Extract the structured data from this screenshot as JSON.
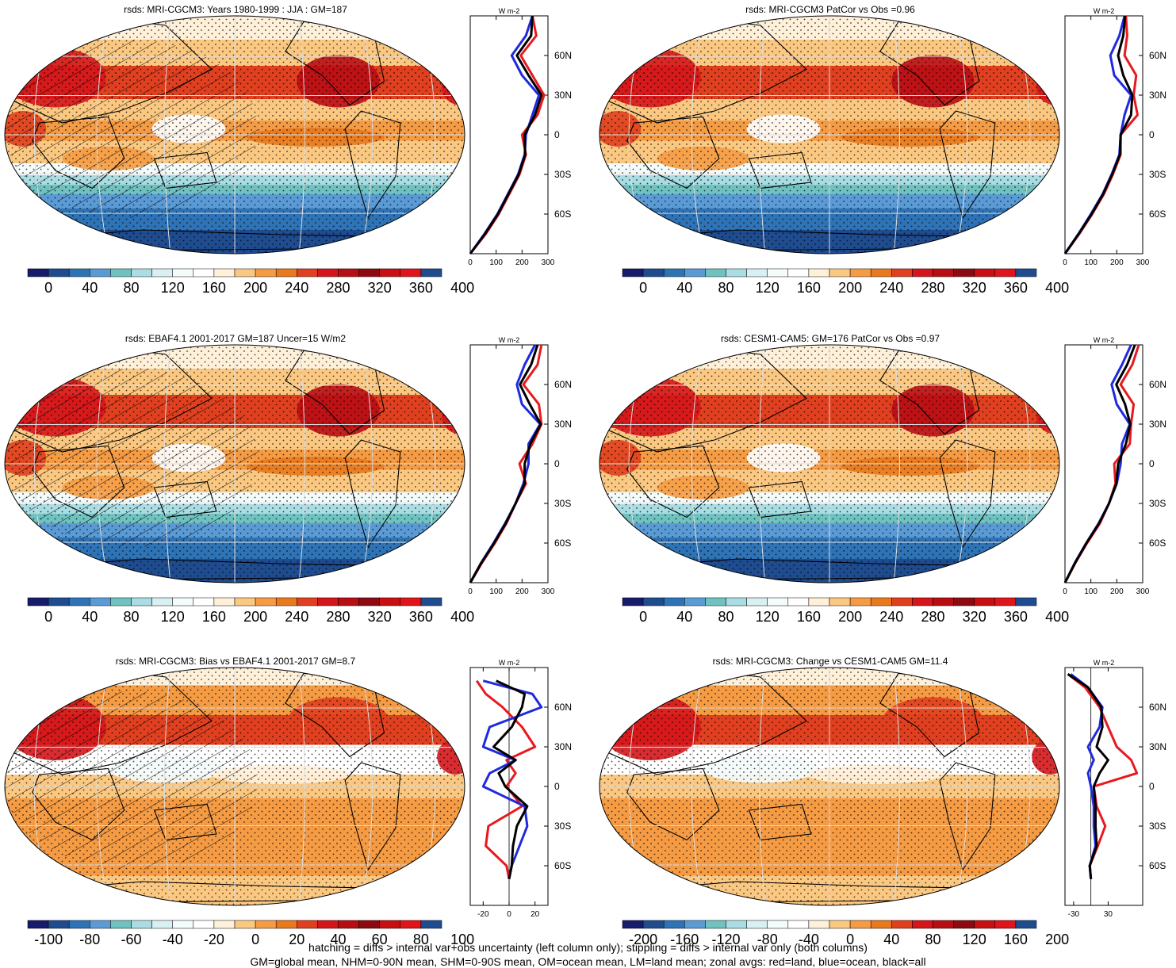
{
  "palettes": {
    "abs": [
      "#161b6b",
      "#1f4c8f",
      "#2e73b6",
      "#5b9bd5",
      "#6fc2c0",
      "#a9dde3",
      "#d8f0f2",
      "#f4fbfb",
      "#ffffff",
      "#fff0d9",
      "#fbc882",
      "#f59b44",
      "#e8791d",
      "#e0401f",
      "#d5151a",
      "#b90d14",
      "#8e0a11",
      "#c81013",
      "#e0141b",
      "#1f4c8f"
    ],
    "bias": [
      "#161b6b",
      "#1f4c8f",
      "#2e73b6",
      "#5b9bd5",
      "#6fc2c0",
      "#a9dde3",
      "#d8f0f2",
      "#f4fbfb",
      "#ffffff",
      "#fff0d9",
      "#fbc882",
      "#f59b44",
      "#e8791d",
      "#e0401f",
      "#d5151a",
      "#b90d14",
      "#8e0a11",
      "#c81013",
      "#e0141b",
      "#1f4c8f"
    ]
  },
  "zonal_colors": {
    "land": "#e8191e",
    "ocean": "#1f2ae0",
    "all": "#000000"
  },
  "chart_data": [
    {
      "type": "heatmap",
      "title": "rsds: MRI-CGCM3: Years 1980-1999 : JJA : GM=187",
      "palette": "abs",
      "colorbar_labels": [
        "0",
        "40",
        "80",
        "120",
        "160",
        "200",
        "240",
        "280",
        "320",
        "360",
        "400"
      ],
      "hatching": true,
      "stippling": true,
      "zonal_unit": "W m-2",
      "zonal_xticks": [
        "0",
        "100",
        "200",
        "300"
      ],
      "zonal_xlim": [
        0,
        300
      ],
      "lat_labels": [
        "60N",
        "30N",
        "0",
        "30S",
        "60S"
      ],
      "zonal_lat": [
        -90,
        -75,
        -60,
        -45,
        -30,
        -15,
        0,
        15,
        30,
        45,
        60,
        75,
        90
      ],
      "zonal_land": [
        0,
        60,
        110,
        150,
        190,
        215,
        200,
        260,
        285,
        240,
        195,
        255,
        240
      ],
      "zonal_ocean": [
        0,
        55,
        105,
        145,
        185,
        210,
        215,
        240,
        265,
        200,
        160,
        215,
        240
      ],
      "zonal_all": [
        0,
        57,
        107,
        147,
        187,
        212,
        210,
        250,
        275,
        225,
        180,
        235,
        240
      ]
    },
    {
      "type": "heatmap",
      "title": "rsds: MRI-CGCM3 PatCor vs Obs =0.96",
      "palette": "abs",
      "colorbar_labels": [
        "0",
        "40",
        "80",
        "120",
        "160",
        "200",
        "240",
        "280",
        "320",
        "360",
        "400"
      ],
      "hatching": false,
      "stippling": true,
      "zonal_unit": "W m-2",
      "zonal_xticks": [
        "0",
        "100",
        "200",
        "300"
      ],
      "zonal_xlim": [
        0,
        300
      ],
      "lat_labels": [
        "60N",
        "30N",
        "0",
        "30S",
        "60S"
      ],
      "zonal_lat": [
        -90,
        -75,
        -60,
        -45,
        -30,
        -15,
        0,
        15,
        30,
        45,
        60,
        75,
        90
      ],
      "zonal_land": [
        0,
        55,
        105,
        150,
        185,
        215,
        215,
        280,
        265,
        275,
        230,
        240,
        235
      ],
      "zonal_ocean": [
        0,
        52,
        100,
        145,
        180,
        210,
        215,
        230,
        255,
        190,
        175,
        210,
        230
      ],
      "zonal_all": [
        0,
        53,
        103,
        147,
        182,
        212,
        215,
        255,
        260,
        225,
        205,
        225,
        232
      ]
    },
    {
      "type": "heatmap",
      "title": "rsds: EBAF4.1 2001-2017 GM=187 Uncer=15 W/m2",
      "palette": "abs",
      "colorbar_labels": [
        "0",
        "40",
        "80",
        "120",
        "160",
        "200",
        "240",
        "280",
        "320",
        "360",
        "400"
      ],
      "hatching": true,
      "stippling": true,
      "zonal_unit": "W m-2",
      "zonal_xticks": [
        "0",
        "100",
        "200",
        "300"
      ],
      "zonal_xlim": [
        0,
        300
      ],
      "lat_labels": [
        "60N",
        "30N",
        "0",
        "30S",
        "60S"
      ],
      "zonal_lat": [
        -90,
        -75,
        -60,
        -45,
        -30,
        -15,
        0,
        15,
        30,
        45,
        60,
        75,
        90
      ],
      "zonal_land": [
        0,
        45,
        95,
        140,
        175,
        215,
        190,
        240,
        275,
        265,
        205,
        260,
        275
      ],
      "zonal_ocean": [
        0,
        42,
        90,
        135,
        175,
        205,
        225,
        225,
        270,
        200,
        180,
        210,
        250
      ],
      "zonal_all": [
        0,
        43,
        92,
        137,
        175,
        210,
        210,
        232,
        272,
        230,
        192,
        235,
        260
      ]
    },
    {
      "type": "heatmap",
      "title": "rsds: CESM1-CAM5: GM=176 PatCor vs Obs =0.97",
      "palette": "abs",
      "colorbar_labels": [
        "0",
        "40",
        "80",
        "120",
        "160",
        "200",
        "240",
        "280",
        "320",
        "360",
        "400"
      ],
      "hatching": false,
      "stippling": true,
      "zonal_unit": "W m-2",
      "zonal_xticks": [
        "0",
        "100",
        "200",
        "300"
      ],
      "zonal_xlim": [
        0,
        300
      ],
      "lat_labels": [
        "60N",
        "30N",
        "0",
        "30S",
        "60S"
      ],
      "zonal_lat": [
        -90,
        -75,
        -60,
        -45,
        -30,
        -15,
        0,
        15,
        30,
        45,
        60,
        75,
        90
      ],
      "zonal_land": [
        0,
        40,
        85,
        135,
        170,
        195,
        190,
        250,
        255,
        265,
        215,
        260,
        285
      ],
      "zonal_ocean": [
        0,
        38,
        82,
        130,
        170,
        200,
        215,
        220,
        250,
        200,
        180,
        220,
        255
      ],
      "zonal_all": [
        0,
        39,
        83,
        132,
        170,
        198,
        205,
        235,
        252,
        232,
        198,
        240,
        270
      ]
    },
    {
      "type": "heatmap",
      "title": "rsds: MRI-CGCM3: Bias vs EBAF4.1 2001-2017 GM=8.7",
      "palette": "bias",
      "colorbar_labels": [
        "-100",
        "-80",
        "-60",
        "-40",
        "-20",
        "0",
        "20",
        "40",
        "60",
        "80",
        "100"
      ],
      "hatching": true,
      "stippling": true,
      "zonal_unit": "W m-2",
      "zonal_xticks": [
        "-20",
        "0",
        "20"
      ],
      "zonal_xlim": [
        -30,
        30
      ],
      "lat_labels": [
        "60N",
        "30N",
        "0",
        "30S",
        "60S"
      ],
      "zonal_lat": [
        -70,
        -60,
        -45,
        -30,
        -15,
        0,
        10,
        20,
        30,
        45,
        60,
        70,
        80
      ],
      "zonal_land": [
        0,
        -2,
        -18,
        -16,
        10,
        -2,
        5,
        -2,
        20,
        10,
        -5,
        -18,
        -25
      ],
      "zonal_ocean": [
        0,
        2,
        8,
        14,
        12,
        -20,
        -15,
        5,
        -20,
        -15,
        25,
        18,
        -20
      ],
      "zonal_all": [
        0,
        2,
        3,
        6,
        14,
        -3,
        -8,
        5,
        -12,
        2,
        10,
        12,
        -10
      ]
    },
    {
      "type": "heatmap",
      "title": "rsds: MRI-CGCM3: Change vs CESM1-CAM5 GM=11.4",
      "palette": "bias",
      "colorbar_labels": [
        "-200",
        "-160",
        "-120",
        "-80",
        "-40",
        "0",
        "40",
        "80",
        "120",
        "160",
        "200"
      ],
      "hatching": false,
      "stippling": true,
      "zonal_unit": "W m-2",
      "zonal_xticks": [
        "-30",
        "30"
      ],
      "zonal_xlim": [
        -45,
        90
      ],
      "lat_labels": [
        "60N",
        "30N",
        "0",
        "30S",
        "60S"
      ],
      "zonal_lat": [
        -70,
        -60,
        -45,
        -30,
        -15,
        0,
        10,
        20,
        30,
        45,
        60,
        75,
        85
      ],
      "zonal_land": [
        0,
        -2,
        12,
        25,
        10,
        5,
        80,
        70,
        45,
        30,
        15,
        -10,
        -40
      ],
      "zonal_ocean": [
        0,
        -2,
        8,
        5,
        5,
        0,
        -5,
        5,
        -5,
        15,
        20,
        -5,
        -35
      ],
      "zonal_all": [
        0,
        -2,
        10,
        8,
        8,
        5,
        15,
        30,
        10,
        20,
        18,
        -5,
        -40
      ]
    }
  ],
  "footnote_1": "hatching = diffs > internal var+obs uncertainty (left column only); stippling = diffs > internal var only (both columns)",
  "footnote_2": "GM=global mean, NHM=0-90N mean, SHM=0-90S mean, OM=ocean mean, LM=land mean; zonal avgs: red=land, blue=ocean, black=all"
}
